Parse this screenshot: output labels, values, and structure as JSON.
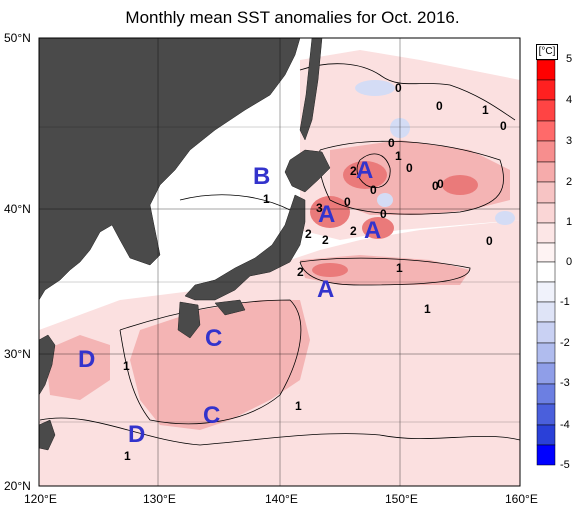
{
  "title": "Monthly mean SST anomalies for Oct. 2016.",
  "y_labels": [
    "50°N",
    "40°N",
    "30°N",
    "20°N"
  ],
  "x_labels": [
    "120°E",
    "130°E",
    "140°E",
    "150°E",
    "160°E"
  ],
  "colorbar": {
    "unit": "[°C]",
    "ticks": [
      "5",
      "4",
      "3",
      "2",
      "1",
      "0",
      "-1",
      "-2",
      "-3",
      "-4",
      "-5"
    ],
    "warm_color": "#ff0000",
    "cold_color": "#0000ff"
  },
  "region_labels": [
    "A",
    "A",
    "A",
    "A",
    "B",
    "C",
    "C",
    "D",
    "D"
  ],
  "contour_labels": [
    "0",
    "0",
    "1",
    "0",
    "0",
    "1",
    "0",
    "0",
    "2",
    "3",
    "0",
    "2",
    "0",
    "0",
    "1",
    "2",
    "2",
    "2",
    "1",
    "1",
    "1",
    "1",
    "1",
    "0",
    "0"
  ],
  "colors": {
    "land": "#4a4a4a",
    "label_blue": "#3333cc",
    "anom_light": "#fbe0e0",
    "anom_mid": "#f4b4b4",
    "anom_strong": "#ea7a7a",
    "anom_cold": "#d4dcf5"
  }
}
